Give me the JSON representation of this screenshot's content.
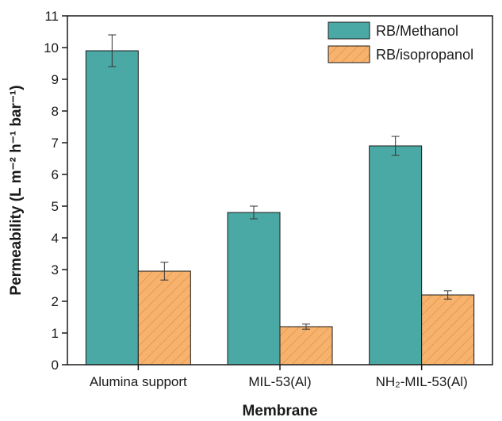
{
  "chart_data": {
    "type": "bar",
    "title": "",
    "xlabel": "Membrane",
    "ylabel": "Permeability (L m⁻² h⁻¹ bar⁻¹)",
    "ylim": [
      0,
      11
    ],
    "yticks": [
      0,
      1,
      2,
      3,
      4,
      5,
      6,
      7,
      8,
      9,
      10,
      11
    ],
    "categories": [
      "Alumina support",
      "MIL-53(Al)",
      "NH₂-MIL-53(Al)"
    ],
    "series": [
      {
        "name": "RB/Methanol",
        "color": "#4ba9a5",
        "pattern": "solid",
        "values": [
          9.9,
          4.8,
          6.9
        ],
        "errors": [
          0.5,
          0.2,
          0.3
        ]
      },
      {
        "name": "RB/isopropanol",
        "color": "#f7b36e",
        "pattern": "diagonal-hatch",
        "values": [
          2.95,
          1.2,
          2.2
        ],
        "errors": [
          0.28,
          0.08,
          0.13
        ]
      }
    ],
    "legend": "top-right",
    "grid": false
  }
}
